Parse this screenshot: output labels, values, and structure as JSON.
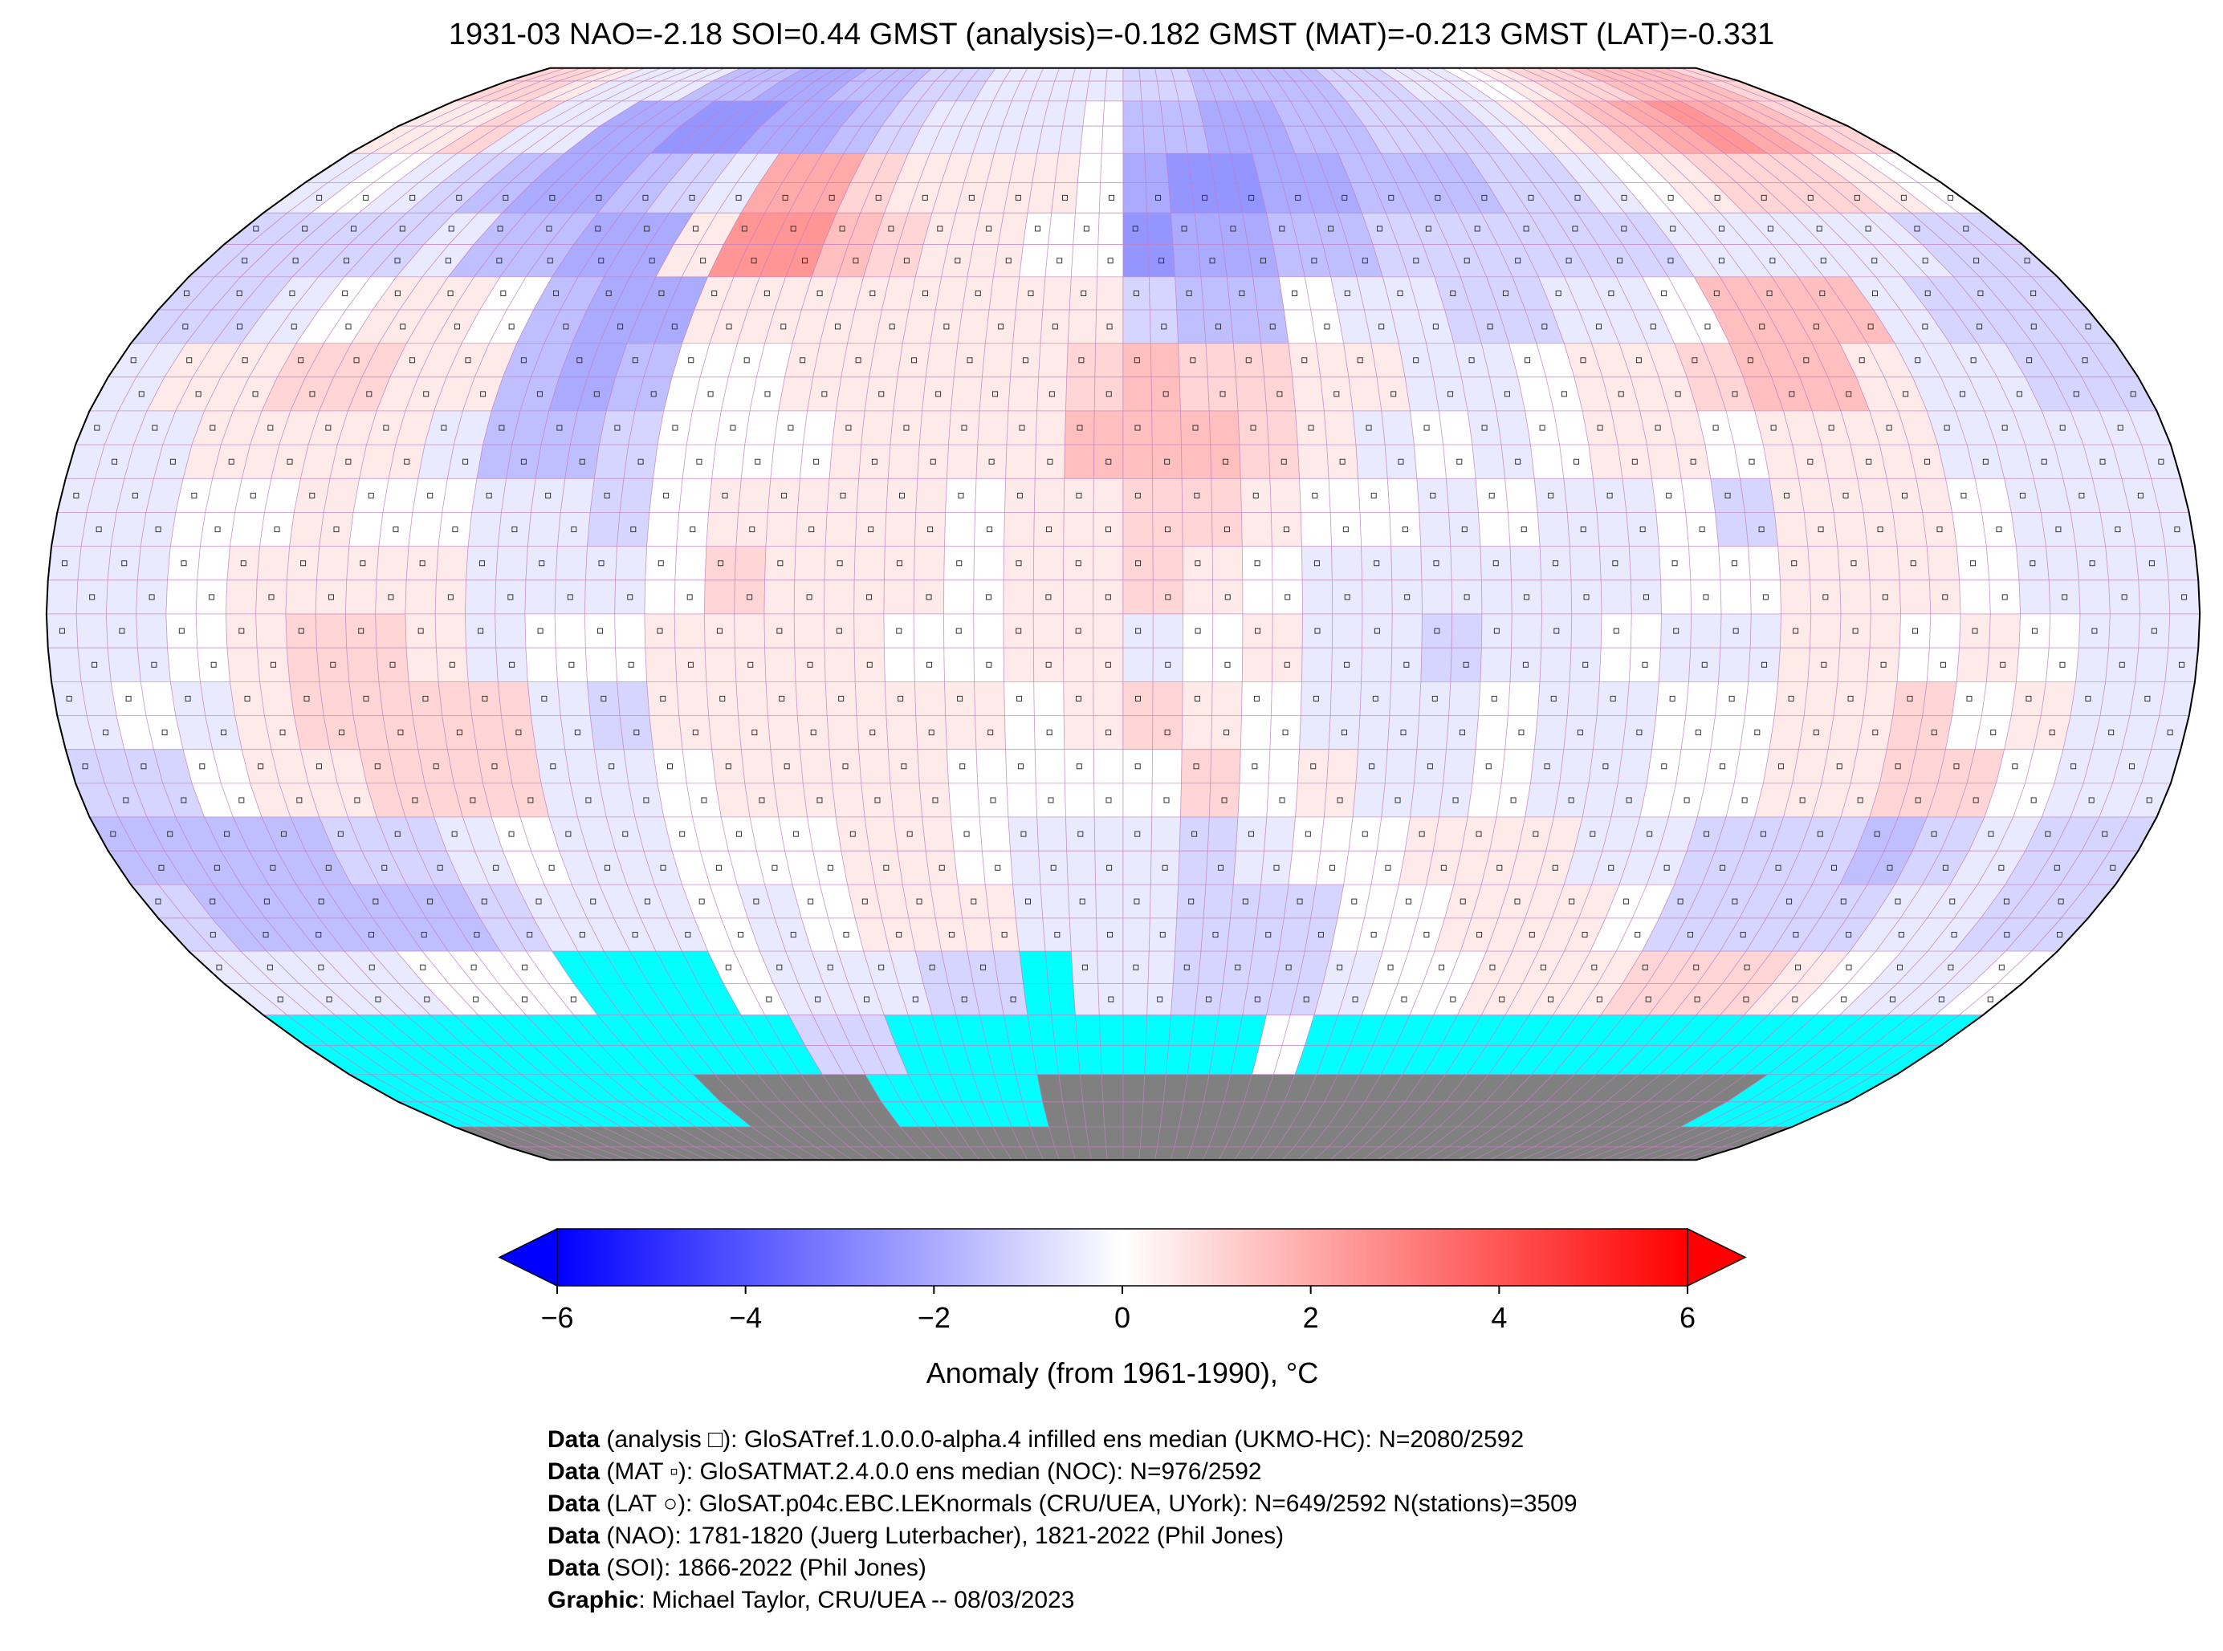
{
  "title": "1931-03 NAO=-2.18 SOI=0.44 GMST (analysis)=-0.182 GMST (MAT)=-0.213 GMST (LAT)=-0.331",
  "colorbar": {
    "label": "Anomaly (from 1961-1990), °C",
    "ticks": [
      "−6",
      "−4",
      "−2",
      "0",
      "2",
      "4",
      "6"
    ],
    "min": -6,
    "max": 6,
    "low_color": "#0000ff",
    "mid_color": "#ffffff",
    "high_color": "#ff0000"
  },
  "colors": {
    "sea_ice": "#00ffff",
    "land_ice": "#808080",
    "grid": "#c080c0",
    "outline": "#000000"
  },
  "chart_data": {
    "type": "heatmap",
    "projection": "Robinson",
    "grid_resolution_deg": 10,
    "value_key": {
      "a": -3,
      "b": -2.5,
      "c": -2,
      "d": -1.5,
      "e": -1,
      "f": -0.5,
      "0": 0,
      "1": 0.5,
      "2": 1,
      "3": 1.5,
      "4": 2,
      "5": 2.5,
      "6": 3,
      "I": "sea-ice",
      "G": "antarctic-land"
    },
    "rows_lat_from_90N": [
      "221fffddccddeeffffeeddddeeff01223332",
      "112ffccbbccdeffff0ddccddeeef12345432",
      "f0fedccdef44211110cbbccdddeef0122210",
      "eeeefddcc155321100bccddeeeeeefffffeee",
      "eef0110dcc11111111edd0ffeeff0333feee",
      "f112211dcd00111112322 11ff01123 31ffee",
      "ff1111fdde0001111333 21f0f0110111ffff",
      "ff00100ffe0111101122100f0ff0e1110fff",
      "ff01111fff02111011210ffffff001110ffff",
      "ff01221f0011110011f01ffeff0ff11010ff",
      "f0f12222fe11111101210fff0ff0011201ff",
      "ee011222ff01111000 0201ff0ff0011220ff",
      "ddddeef0ff000110fffef00111ffeeedefee",
      "edddddefff0f0111fffeee001110eeeeffee",
      "ffff000III0fffeeIffeeef0011122210ff0",
      "IIIIIIIIIIIeeIIIIIIII0IIIIIIIIIIIIII",
      "IIIIIIIIGGGGIIIIGGGGGGGGGGGGGGGGGIII",
      "GGGGGGGGGGGGGGGGGGGGGGGGGGGGGGGGGGGG"
    ]
  },
  "footer": [
    {
      "bold": "Data",
      "text": " (analysis □): GloSATref.1.0.0.0-alpha.4 infilled ens median (UKMO-HC): N=2080/2592"
    },
    {
      "bold": "Data",
      "text": " (MAT ▫): GloSATMAT.2.4.0.0 ens median (NOC): N=976/2592"
    },
    {
      "bold": "Data",
      "text": " (LAT ○): GloSAT.p04c.EBC.LEKnormals (CRU/UEA, UYork): N=649/2592 N(stations)=3509"
    },
    {
      "bold": "Data",
      "text": " (NAO): 1781-1820 (Juerg Luterbacher), 1821-2022 (Phil Jones)"
    },
    {
      "bold": "Data",
      "text": " (SOI): 1866-2022 (Phil Jones)"
    },
    {
      "bold": "Graphic",
      "text": ": Michael Taylor, CRU/UEA -- 08/03/2023"
    }
  ]
}
